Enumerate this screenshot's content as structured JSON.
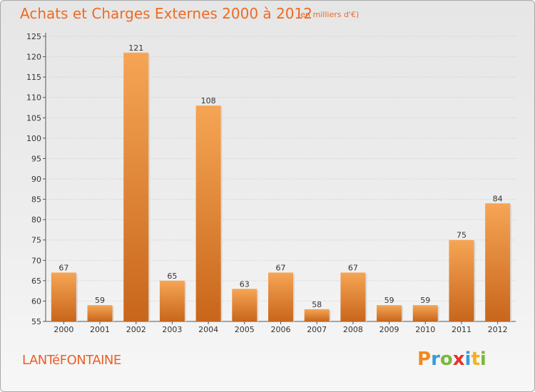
{
  "title": "Achats et Charges Externes 2000 à 2012",
  "subtitle": "(en milliers d'€)",
  "commune": "LANTéFONTAINE",
  "logo": {
    "letters": [
      "P",
      "r",
      "o",
      "x",
      "i",
      "t",
      "i"
    ],
    "colors": [
      "#f08a1e",
      "#3a9ad9",
      "#7ab83a",
      "#e8312d",
      "#3a9ad9",
      "#f0b21e",
      "#7ab83a"
    ]
  },
  "colors": {
    "bar_light": "#f6a555",
    "bar_dark": "#c8661b",
    "title": "#ee6a22"
  },
  "chart_data": {
    "type": "bar",
    "title": "Achats et Charges Externes 2000 à 2012",
    "subtitle": "(en milliers d'€)",
    "categories": [
      "2000",
      "2001",
      "2002",
      "2003",
      "2004",
      "2005",
      "2006",
      "2007",
      "2008",
      "2009",
      "2010",
      "2011",
      "2012"
    ],
    "values": [
      67,
      59,
      121,
      65,
      108,
      63,
      67,
      58,
      67,
      59,
      59,
      75,
      84
    ],
    "ylim": [
      55,
      125
    ],
    "yticks": [
      55,
      60,
      65,
      70,
      75,
      80,
      85,
      90,
      95,
      100,
      105,
      110,
      115,
      120,
      125
    ],
    "grid": true,
    "legend": "none"
  }
}
